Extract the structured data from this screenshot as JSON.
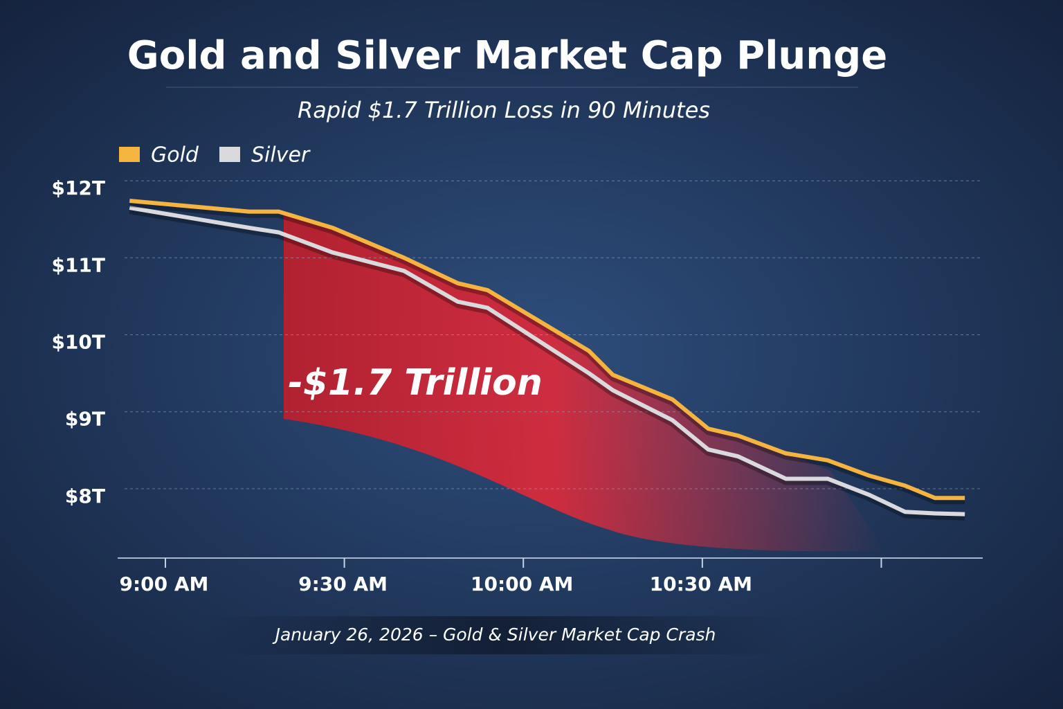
{
  "chart_data": {
    "type": "line",
    "title": "Gold and Silver Market Cap Plunge",
    "subtitle": "Rapid $1.7 Trillion Loss in 90 Minutes",
    "annotation": "-$1.7 Trillion",
    "footer": "January 26, 2026 – Gold & Silver Market Cap Crash",
    "x": [
      "8:54 AM",
      "9:14 AM",
      "9:19 AM",
      "9:28 AM",
      "9:40 AM",
      "9:49 AM",
      "9:54 AM",
      "10:11 AM",
      "10:15 AM",
      "10:25 AM",
      "10:31 AM",
      "10:36 AM",
      "10:44 AM",
      "10:51 AM",
      "10:58 AM",
      "11:04 AM",
      "11:09 AM",
      "11:14 AM"
    ],
    "series": [
      {
        "name": "Gold",
        "color": "#f5b340",
        "values": [
          11.74,
          11.6,
          11.6,
          11.39,
          11.0,
          10.67,
          10.58,
          9.79,
          9.48,
          9.16,
          8.78,
          8.69,
          8.46,
          8.37,
          8.17,
          8.04,
          7.88,
          7.88
        ]
      },
      {
        "name": "Silver",
        "color": "#d9d9de",
        "values": [
          11.65,
          11.39,
          11.33,
          11.07,
          10.83,
          10.43,
          10.35,
          9.5,
          9.28,
          8.89,
          8.51,
          8.42,
          8.13,
          8.13,
          7.92,
          7.7,
          7.68,
          7.67
        ]
      }
    ],
    "xlim": [
      "8:52 AM",
      "11:17 AM"
    ],
    "xticks": [
      {
        "value": "9:00 AM",
        "label": "9:00 AM"
      },
      {
        "value": "9:30 AM",
        "label": "9:30 AM"
      },
      {
        "value": "10:00 AM",
        "label": "10:00 AM"
      },
      {
        "value": "10:30 AM",
        "label": "10:30 AM"
      },
      {
        "value": "11:00 AM",
        "label": null
      }
    ],
    "ylim": [
      7.1,
      12.1
    ],
    "yticks": [
      {
        "value": 8,
        "label": "$8T"
      },
      {
        "value": 9,
        "label": "$9T"
      },
      {
        "value": 10,
        "label": "$10T"
      },
      {
        "value": 11,
        "label": "$11T"
      },
      {
        "value": 12,
        "label": "$12T"
      }
    ],
    "grid": true
  }
}
